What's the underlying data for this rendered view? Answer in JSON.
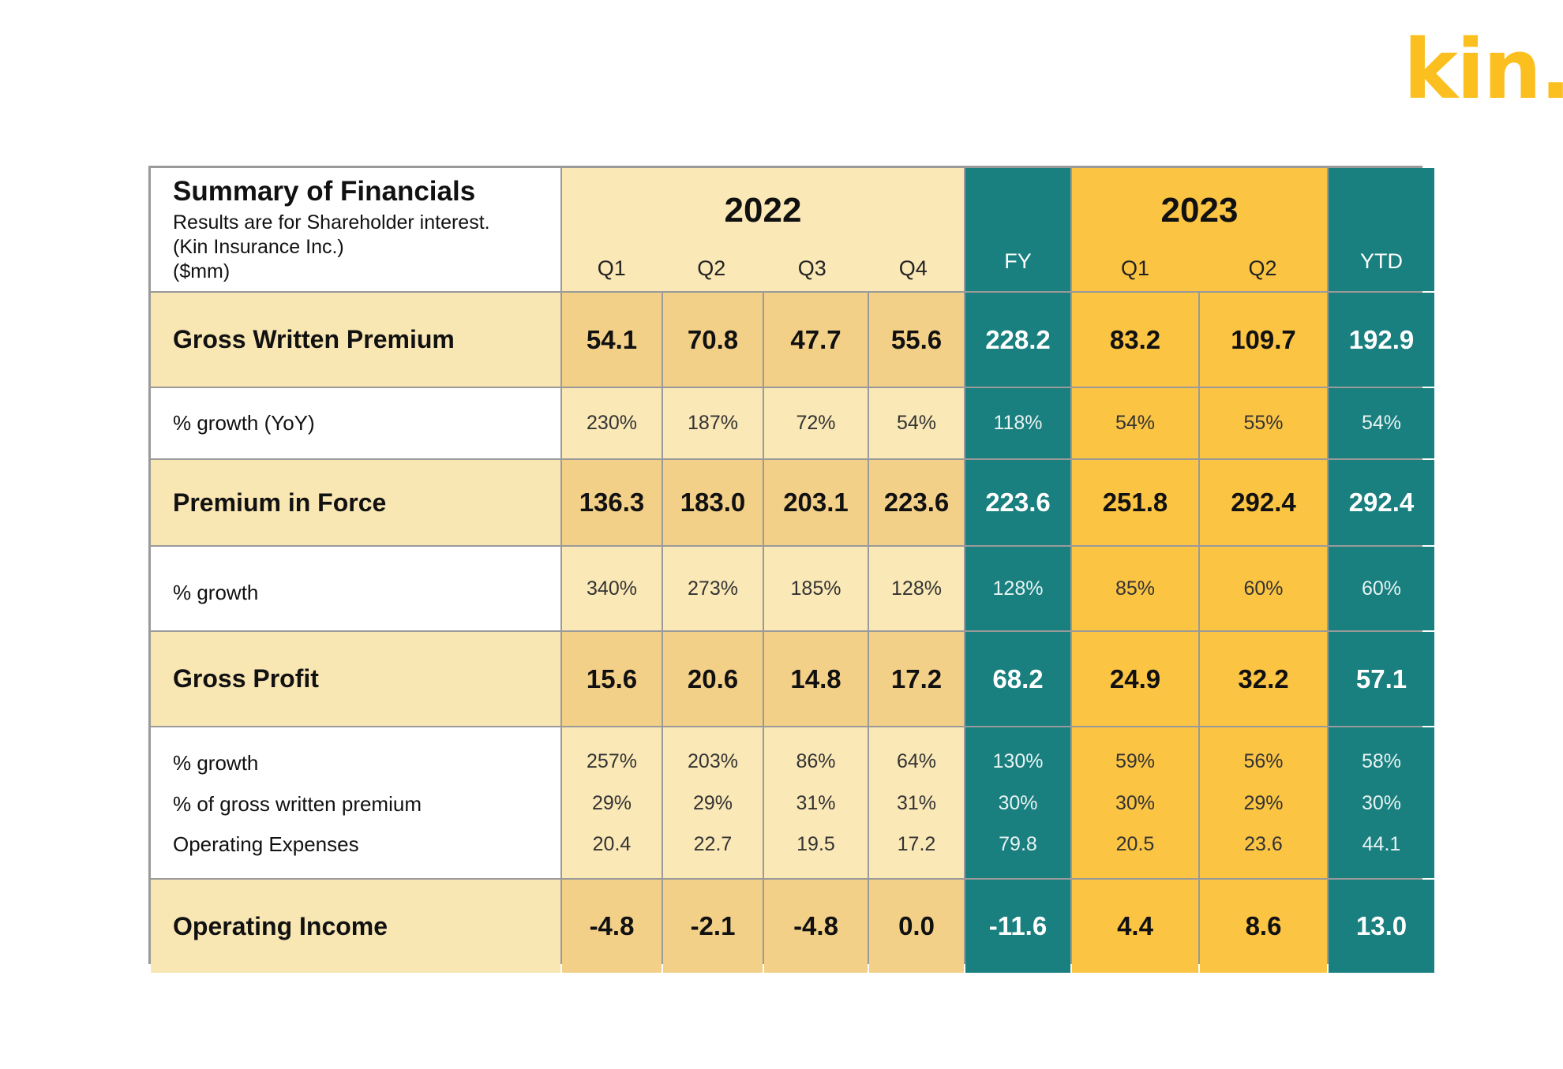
{
  "logo": {
    "text": "kin.",
    "color": "#fbbf1f"
  },
  "colors": {
    "teal": "#197f7f",
    "gold": "#fbc443",
    "light_yellow": "#fae8b6",
    "tan": "#f3d088"
  },
  "header": {
    "title": "Summary of Financials",
    "subtitle_lines": [
      "Results are for Shareholder interest.",
      "(Kin Insurance Inc.)",
      "($mm)"
    ],
    "year_2022": "2022",
    "year_2023": "2023",
    "columns": [
      "Q1",
      "Q2",
      "Q3",
      "Q4",
      "FY",
      "Q1",
      "Q2",
      "YTD"
    ]
  },
  "rows": [
    {
      "label": "Gross Written Premium",
      "values": [
        "54.1",
        "70.8",
        "47.7",
        "55.6",
        "228.2",
        "83.2",
        "109.7",
        "192.9"
      ]
    },
    {
      "label": "% growth (YoY)",
      "values": [
        "230%",
        "187%",
        "72%",
        "54%",
        "118%",
        "54%",
        "55%",
        "54%"
      ]
    },
    {
      "label": "Premium in Force",
      "values": [
        "136.3",
        "183.0",
        "203.1",
        "223.6",
        "223.6",
        "251.8",
        "292.4",
        "292.4"
      ]
    },
    {
      "label": "% growth",
      "values": [
        "340%",
        "273%",
        "185%",
        "128%",
        "128%",
        "85%",
        "60%",
        "60%"
      ]
    },
    {
      "label": "Gross Profit",
      "values": [
        "15.6",
        "20.6",
        "14.8",
        "17.2",
        "68.2",
        "24.9",
        "32.2",
        "57.1"
      ]
    },
    {
      "labels": [
        "% growth",
        "% of gross written premium",
        "Operating Expenses"
      ],
      "values": [
        [
          "257%",
          "29%",
          "20.4"
        ],
        [
          "203%",
          "29%",
          "22.7"
        ],
        [
          "86%",
          "31%",
          "19.5"
        ],
        [
          "64%",
          "31%",
          "17.2"
        ],
        [
          "130%",
          "30%",
          "79.8"
        ],
        [
          "59%",
          "30%",
          "20.5"
        ],
        [
          "56%",
          "29%",
          "23.6"
        ],
        [
          "58%",
          "30%",
          "44.1"
        ]
      ]
    },
    {
      "label": "Operating Income",
      "values": [
        "-4.8",
        "-2.1",
        "-4.8",
        "0.0",
        "-11.6",
        "4.4",
        "8.6",
        "13.0"
      ]
    }
  ]
}
